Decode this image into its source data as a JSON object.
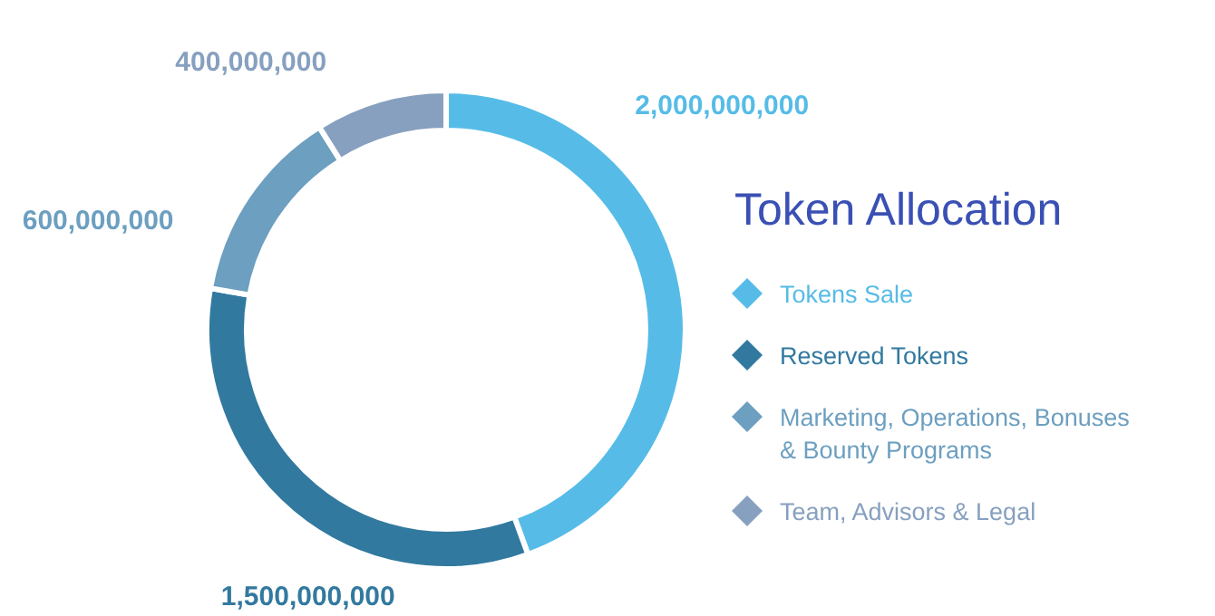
{
  "chart_data": {
    "type": "donut",
    "title": "Token Allocation",
    "categories": [
      "Tokens Sale",
      "Reserved Tokens",
      "Marketing, Operations, Bonuses & Bounty Programs",
      "Team, Advisors & Legal"
    ],
    "values": [
      2000000000,
      1500000000,
      600000000,
      400000000
    ],
    "colors": [
      "#56bce7",
      "#32799f",
      "#6c9fc0",
      "#87a0bf"
    ],
    "value_labels": [
      "2,000,000,000",
      "1,500,000,000",
      "600,000,000",
      "400,000,000"
    ],
    "legend": "right"
  }
}
